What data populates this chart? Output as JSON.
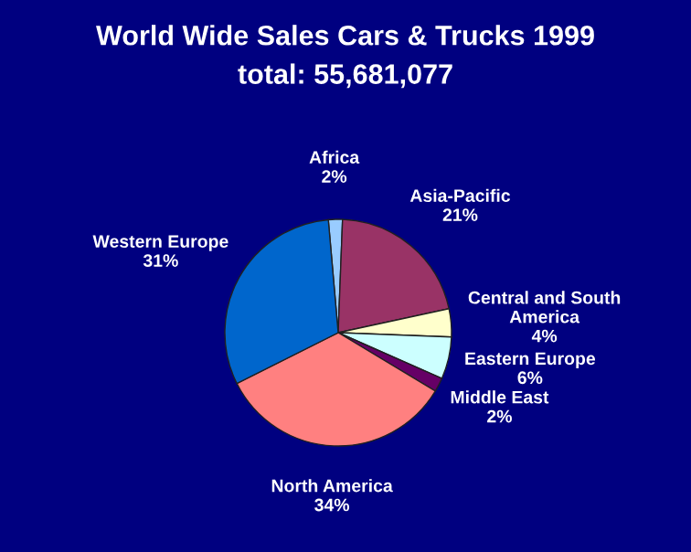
{
  "chart_data": {
    "type": "pie",
    "title": "World Wide Sales Cars & Trucks 1999",
    "subtitle": "total: 55,681,077",
    "categories": [
      "Africa",
      "Asia-Pacific",
      "Central and South\nAmerica",
      "Eastern Europe",
      "Middle East",
      "North America",
      "Western Europe"
    ],
    "values": [
      2,
      21,
      4,
      6,
      2,
      34,
      31
    ],
    "value_labels": [
      "2%",
      "21%",
      "4%",
      "6%",
      "2%",
      "34%",
      "31%"
    ],
    "colors": [
      "#99ccff",
      "#993366",
      "#ffffcc",
      "#ccffff",
      "#660066",
      "#ff8080",
      "#0066cc"
    ]
  }
}
